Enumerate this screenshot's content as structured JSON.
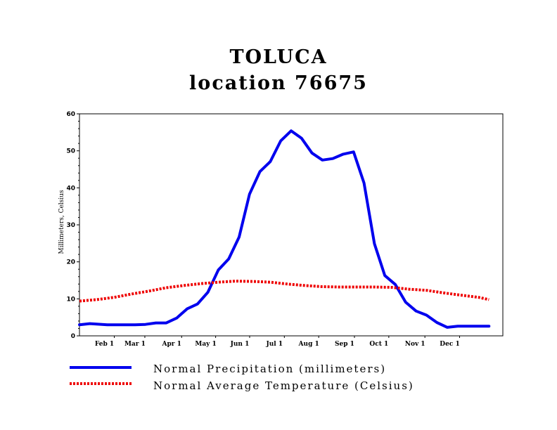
{
  "chart_data": {
    "type": "line",
    "title": "TOLUCA",
    "subtitle": "location 76675",
    "ylabel": "Millimeters, Celsius",
    "xlabel": "",
    "ylim": [
      0,
      60
    ],
    "yticks": [
      0,
      10,
      20,
      30,
      40,
      50,
      60
    ],
    "xlim": [
      0,
      12.2
    ],
    "xtick_labels": [
      "Feb 1",
      "Mar 1",
      "Apr 1",
      "May 1",
      "Jun 1",
      "Jul 1",
      "Aug 1",
      "Sep 1",
      "Oct 1",
      "Nov 1",
      "Dec 1"
    ],
    "xtick_positions": [
      0.72,
      1.6,
      2.66,
      3.64,
      4.62,
      5.62,
      6.61,
      7.64,
      8.63,
      9.67,
      10.67
    ],
    "grid": false,
    "legend_position": "bottom",
    "series": [
      {
        "name": "Normal Precipitation (millimeters)",
        "color": "#0000ee",
        "style": "solid",
        "x": [
          0.0,
          0.3,
          0.8,
          1.6,
          1.9,
          2.2,
          2.5,
          2.8,
          3.1,
          3.4,
          3.7,
          4.0,
          4.3,
          4.6,
          4.9,
          5.2,
          5.5,
          5.8,
          6.1,
          6.4,
          6.7,
          7.0,
          7.3,
          7.6,
          7.9,
          8.2,
          8.5,
          8.8,
          9.1,
          9.4,
          9.7,
          10.0,
          10.3,
          10.6,
          10.9,
          11.2,
          11.5,
          11.8
        ],
        "values": [
          3.0,
          3.3,
          3.0,
          3.0,
          3.1,
          3.5,
          3.5,
          4.8,
          7.3,
          8.6,
          11.8,
          17.8,
          20.8,
          26.7,
          38.3,
          44.4,
          47.1,
          52.7,
          55.4,
          53.4,
          49.4,
          47.5,
          47.9,
          49.1,
          49.7,
          41.3,
          24.9,
          16.3,
          13.9,
          9.1,
          6.7,
          5.6,
          3.6,
          2.3,
          2.6,
          2.6,
          2.6,
          2.6
        ]
      },
      {
        "name": "Normal Average Temperature (Celsius)",
        "color": "#ee0000",
        "style": "dotted",
        "x": [
          0.0,
          0.5,
          1.0,
          1.5,
          2.0,
          2.5,
          3.0,
          3.5,
          4.0,
          4.5,
          5.0,
          5.5,
          6.0,
          6.5,
          7.0,
          7.5,
          8.0,
          8.5,
          9.0,
          9.5,
          10.0,
          10.5,
          11.0,
          11.5,
          11.8
        ],
        "values": [
          9.4,
          9.8,
          10.4,
          11.3,
          12.1,
          13.0,
          13.6,
          14.1,
          14.5,
          14.8,
          14.7,
          14.5,
          14.0,
          13.6,
          13.3,
          13.2,
          13.2,
          13.2,
          13.1,
          12.6,
          12.3,
          11.6,
          11.0,
          10.4,
          9.8
        ]
      }
    ]
  }
}
